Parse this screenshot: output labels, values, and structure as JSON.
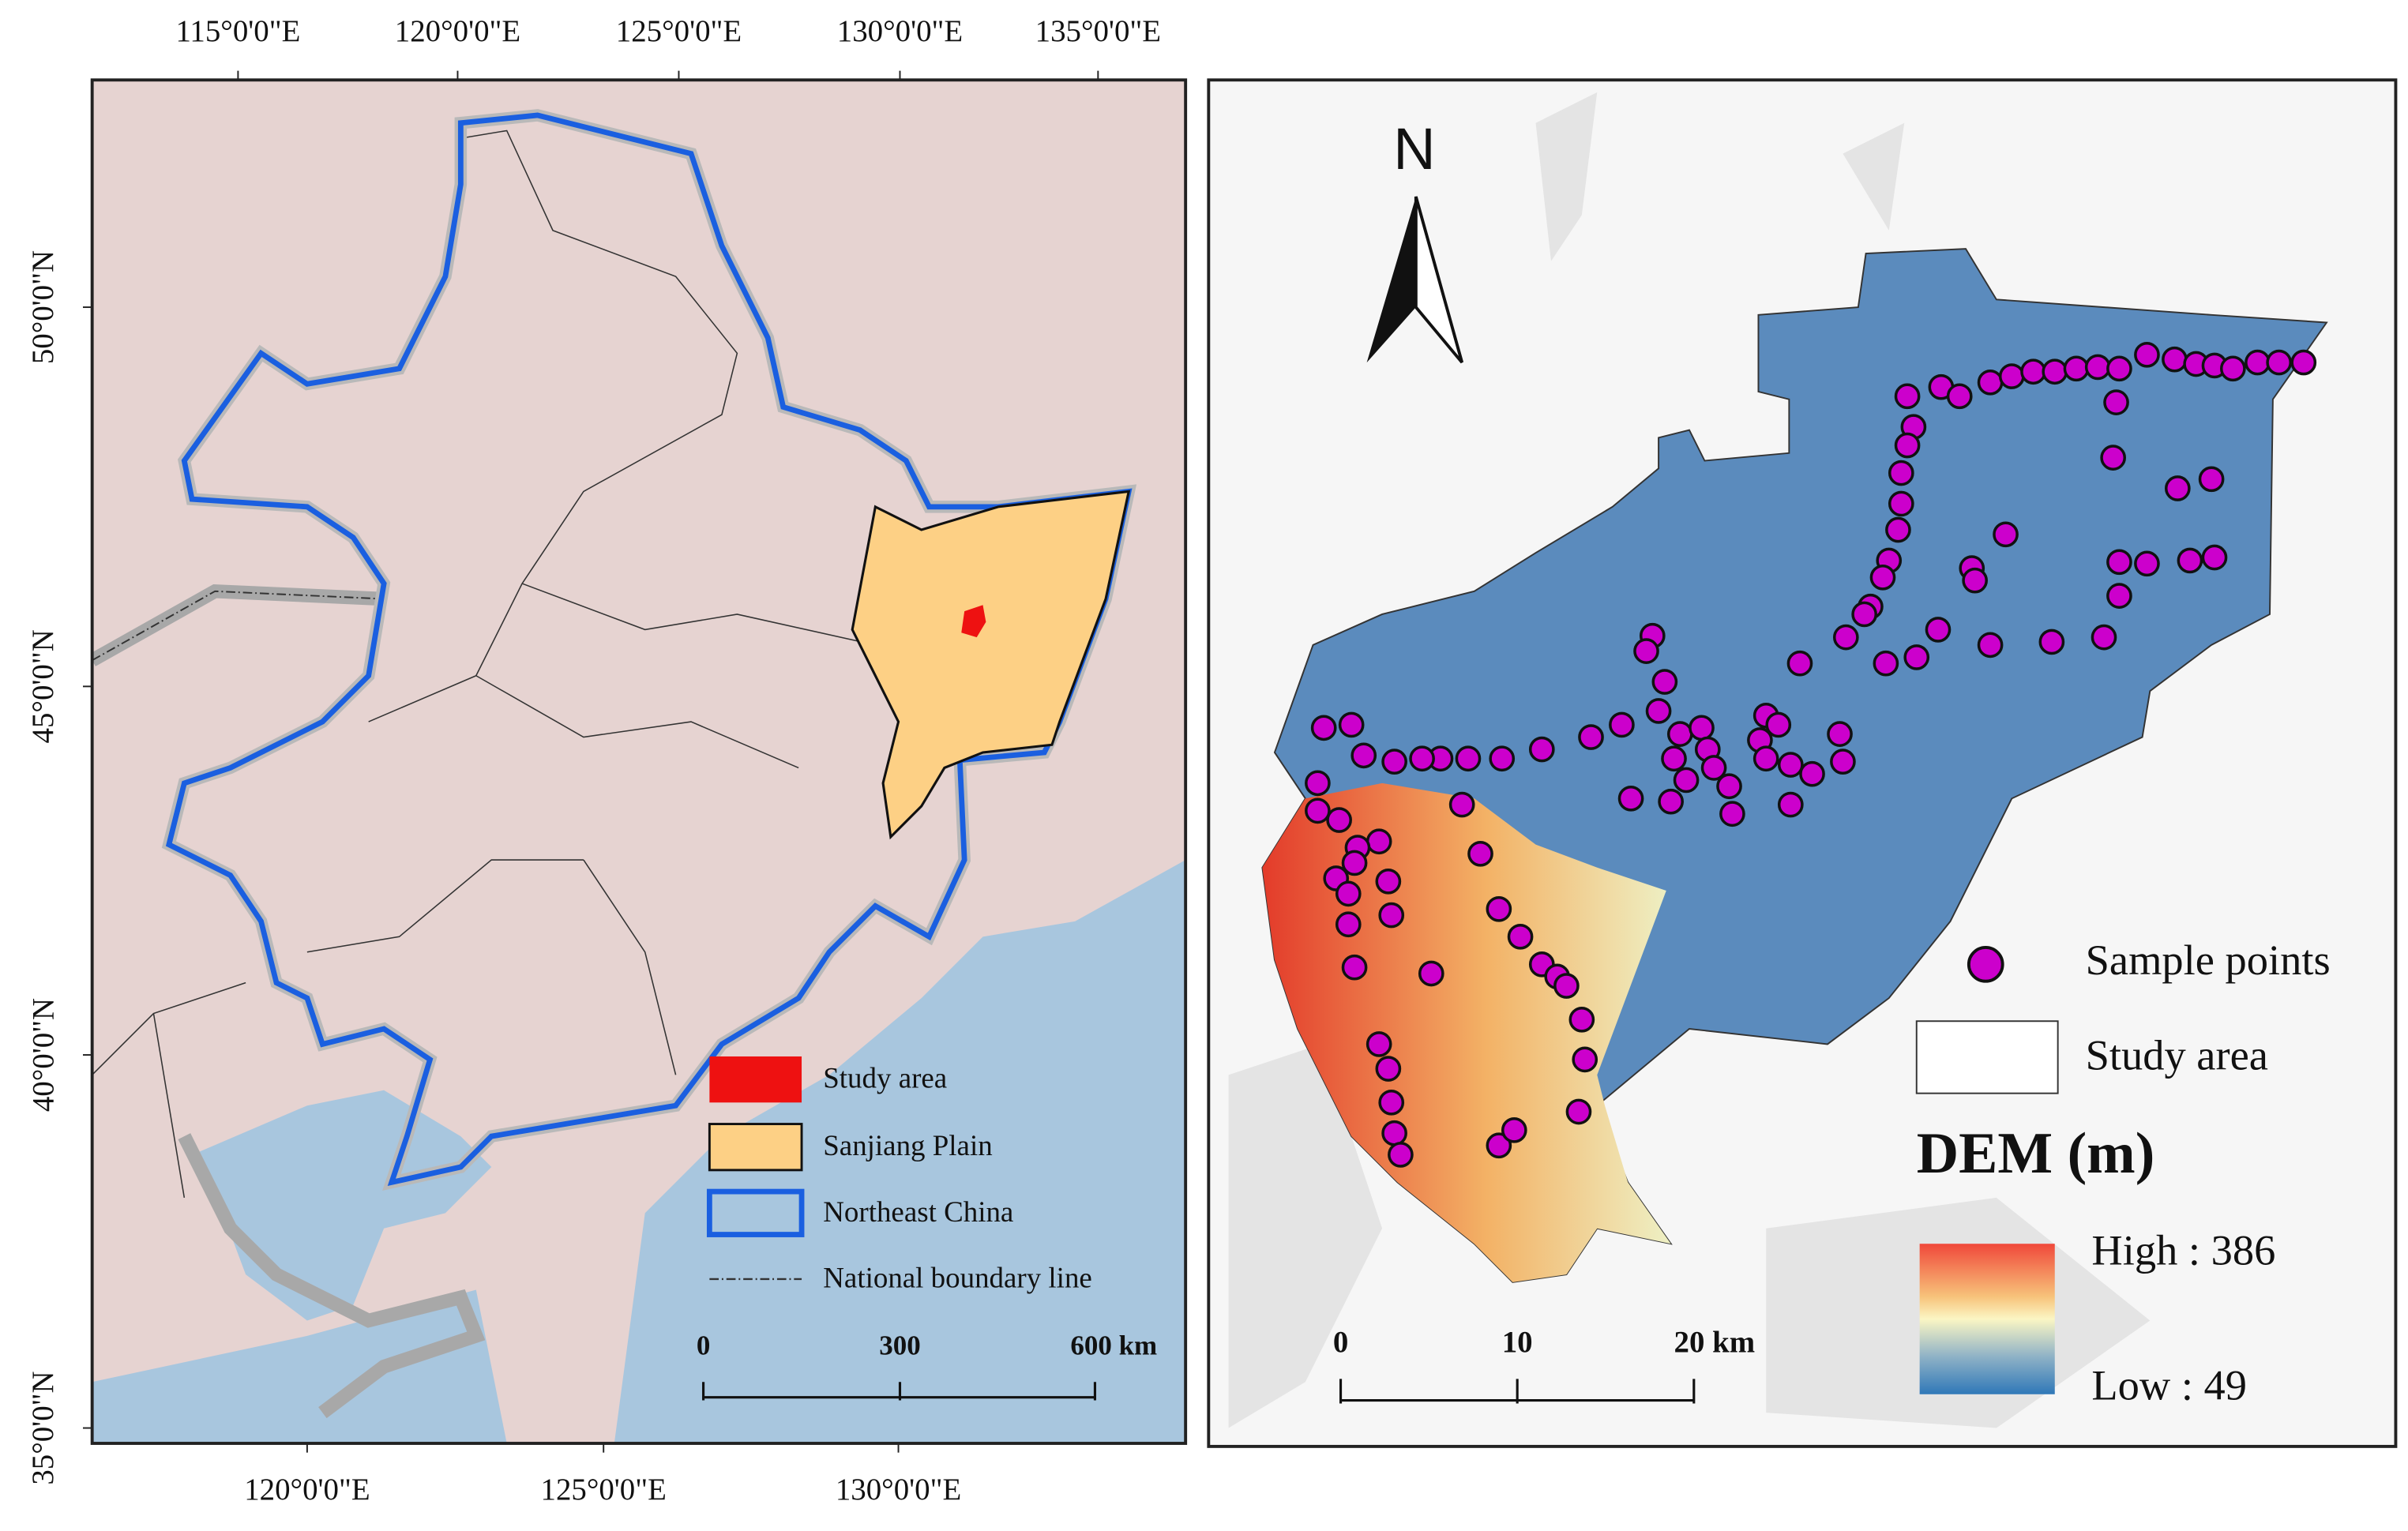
{
  "left_map": {
    "top_longitude_labels": [
      "115°0'0\"E",
      "120°0'0\"E",
      "125°0'0\"E",
      "130°0'0\"E",
      "135°0'0\"E"
    ],
    "bottom_longitude_labels": [
      "120°0'0\"E",
      "125°0'0\"E",
      "130°0'0\"E"
    ],
    "latitude_labels": [
      "50°0'0\"N",
      "45°0'0\"N",
      "40°0'0\"N",
      "35°0'0\"N"
    ],
    "legend": [
      "Study area",
      "Sanjiang Plain",
      "Northeast China",
      "National boundary line"
    ],
    "scale_bar": [
      "0",
      "300",
      "600 km"
    ]
  },
  "right_map": {
    "north_label": "N",
    "legend": [
      "Sample points",
      "Study area"
    ],
    "dem_title": "DEM (m)",
    "dem_high": "High : 386",
    "dem_low": "Low : 49",
    "scale_bar": [
      "0",
      "10",
      "20 km"
    ]
  }
}
